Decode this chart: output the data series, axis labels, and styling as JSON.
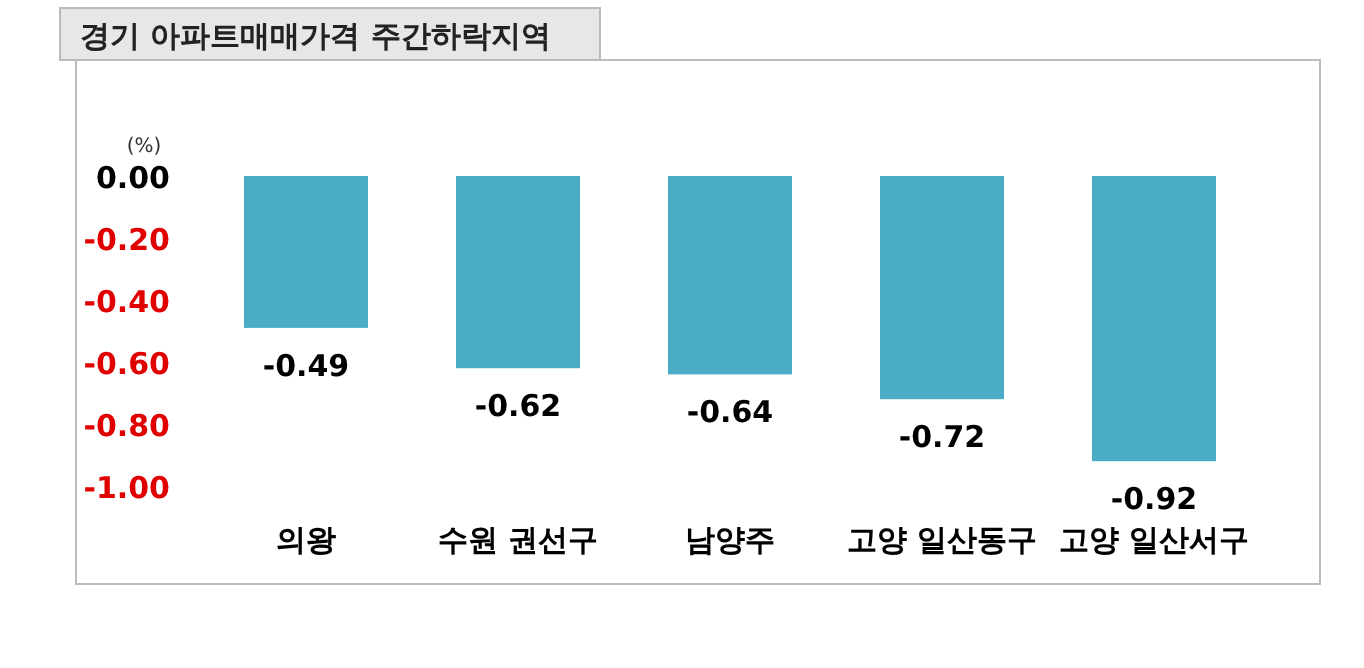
{
  "chart_data": {
    "type": "bar",
    "title": "경기 아파트매매가격 주간하락지역",
    "ylabel": "(%)",
    "categories": [
      "의왕",
      "수원 권선구",
      "남양주",
      "고양 일산동구",
      "고양 일산서구"
    ],
    "values": [
      -0.49,
      -0.62,
      -0.64,
      -0.72,
      -0.92
    ],
    "color": "#4bacc6",
    "ylim": [
      -1.0,
      0.0
    ],
    "yticks": [
      {
        "value": 0,
        "label": "0.00"
      },
      {
        "value": -0.2,
        "label": "-0.20"
      },
      {
        "value": -0.4,
        "label": "-0.40"
      },
      {
        "value": -0.6,
        "label": "-0.60"
      },
      {
        "value": -0.8,
        "label": "-0.80"
      },
      {
        "value": -1.0,
        "label": "-1.00"
      }
    ],
    "data_labels": true
  }
}
